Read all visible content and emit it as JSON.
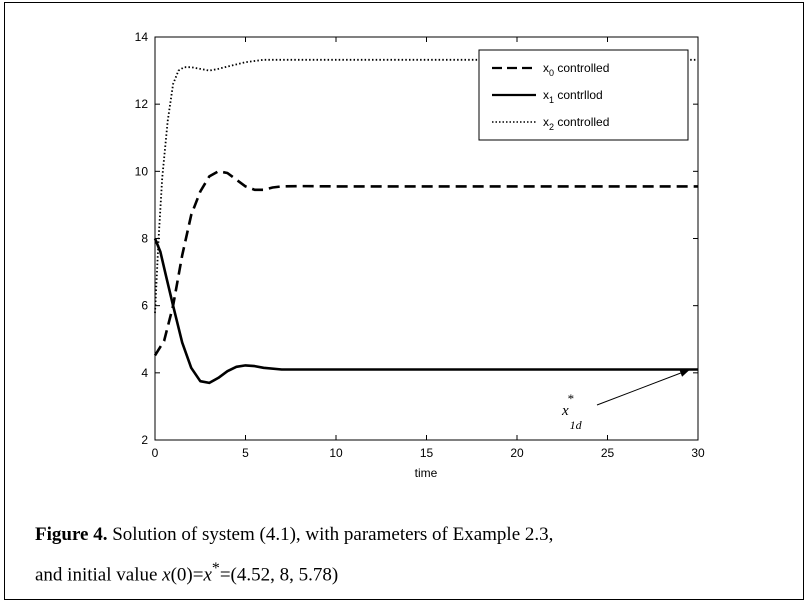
{
  "chart_data": {
    "type": "line",
    "xlabel": "time",
    "ylabel": "",
    "xlim": [
      0,
      30
    ],
    "ylim": [
      2,
      14
    ],
    "xticks": [
      0,
      5,
      10,
      15,
      20,
      25,
      30
    ],
    "yticks": [
      2,
      4,
      6,
      8,
      10,
      12,
      14
    ],
    "grid": false,
    "legend_position": "top-right",
    "series": [
      {
        "name": "x0 controlled",
        "legend_main": "x",
        "legend_sub": "0",
        "legend_rest": " controlled",
        "style": "dashed",
        "x": [
          0,
          0.5,
          1,
          1.5,
          2,
          2.5,
          3,
          3.5,
          4,
          4.5,
          5,
          5.5,
          6,
          6.5,
          7,
          8,
          10,
          15,
          20,
          25,
          30
        ],
        "y": [
          4.52,
          4.95,
          6.0,
          7.5,
          8.7,
          9.4,
          9.85,
          10.0,
          9.95,
          9.75,
          9.55,
          9.45,
          9.45,
          9.52,
          9.55,
          9.56,
          9.55,
          9.55,
          9.55,
          9.55,
          9.55
        ]
      },
      {
        "name": "x1 contrllod",
        "legend_main": "x",
        "legend_sub": "1",
        "legend_rest": " contrllod",
        "style": "solid",
        "x": [
          0,
          0.3,
          0.6,
          1,
          1.5,
          2,
          2.5,
          3,
          3.5,
          4,
          4.5,
          5,
          5.5,
          6,
          7,
          8,
          10,
          15,
          20,
          25,
          30
        ],
        "y": [
          8.0,
          7.6,
          6.9,
          6.0,
          4.9,
          4.15,
          3.75,
          3.7,
          3.85,
          4.05,
          4.18,
          4.22,
          4.2,
          4.15,
          4.1,
          4.1,
          4.1,
          4.1,
          4.1,
          4.1,
          4.1
        ]
      },
      {
        "name": "x2 controlled",
        "legend_main": "x",
        "legend_sub": "2",
        "legend_rest": " controlled",
        "style": "dotted",
        "x": [
          0,
          0.2,
          0.4,
          0.7,
          1,
          1.3,
          1.6,
          2,
          2.5,
          3,
          3.5,
          4,
          5,
          6,
          7,
          10,
          15,
          20,
          25,
          30
        ],
        "y": [
          5.78,
          8.0,
          9.8,
          11.5,
          12.6,
          13.0,
          13.1,
          13.1,
          13.05,
          13.0,
          13.05,
          13.12,
          13.25,
          13.32,
          13.32,
          13.32,
          13.32,
          13.32,
          13.32,
          13.32
        ]
      }
    ],
    "annotation": {
      "main": "x",
      "sup": "*",
      "sub": "1d",
      "target_x": 30,
      "target_y": 4.1
    }
  },
  "caption": {
    "label": "Figure 4.",
    "line1": " Solution of system (4.1), with parameters of  Example 2.3,",
    "line2_a": "and initial value ",
    "line2_var1": "x",
    "line2_b": "(0)=",
    "line2_var2": "x",
    "line2_sup": "*",
    "line2_c": "=(4.52, 8, 5.78)"
  },
  "colors": {
    "line": "#000000",
    "background": "#ffffff"
  }
}
